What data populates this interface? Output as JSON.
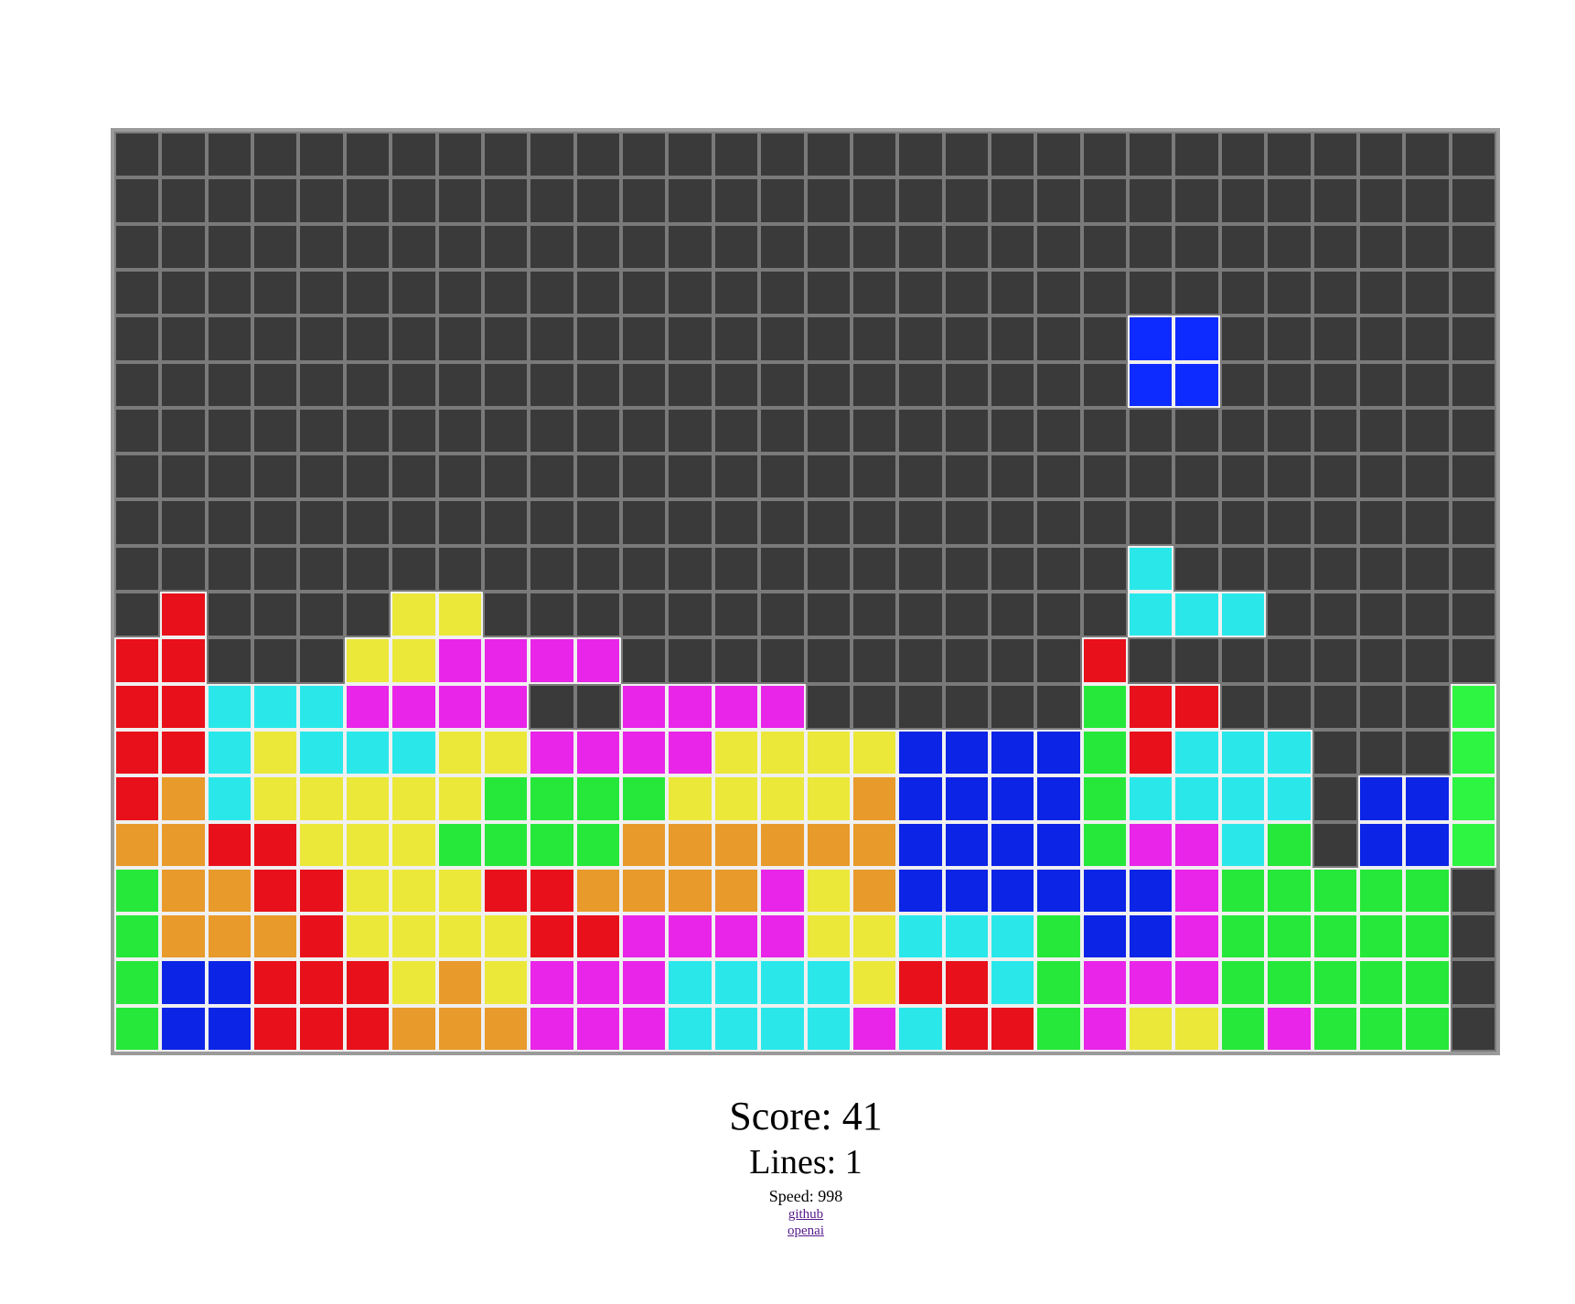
{
  "game": {
    "cols": 30,
    "rows": 20,
    "empty_color": "#3a3a3a",
    "grid_line_color": "#7a7a7a",
    "filled_border_color": "#f0f0f0",
    "palette": {
      "R": "#e8101a",
      "O": "#e89a2a",
      "Y": "#ebe83a",
      "G": "#26e83a",
      "L": "#2ef542",
      "C": "#2ae8ea",
      "M": "#e825e8",
      "B": "#0b24e6",
      "K": "#0e2bff"
    },
    "board_rows": [
      "..............................",
      "..............................",
      "..............................",
      "..............................",
      "......................KK......",
      "......................KK......",
      "..............................",
      "..............................",
      "..............................",
      "......................C.......",
      ".R....YY..............CCC.....",
      "RR...YYMMMM..........R........",
      "RRCCCMMMM..MMMM......GRR.....L",
      "RRCYCCCYYMMMMYYYYBBBBGRCCC...L",
      "ROCYYYYYGGGGYYYYOBBBBGCCCC.BBL",
      "OORRYYYGGGGOOOOOOBBBBGMMCG.BBL",
      "GOORRYYYRROOOOMYOBBBBBBMGGGGG.",
      "GOOORYYYYRRMMMMYYCCCGBBMGGGGG.",
      "GBBRRRYOYMMMCCCCYRRCGMMMGGGGG.",
      "GBBRRROOOMMMCCCCMCRRGMYYGMGGG."
    ]
  },
  "stats": {
    "score_text": "Score: 41",
    "lines_text": "Lines: 1",
    "speed_text": "Speed: 998"
  },
  "links": {
    "github": "github",
    "openai": "openai"
  }
}
